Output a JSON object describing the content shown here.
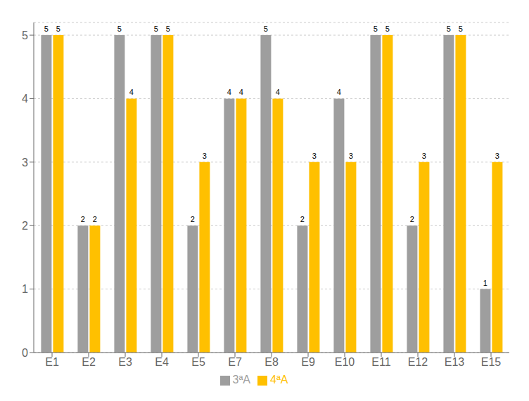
{
  "chart_data": {
    "type": "bar",
    "categories": [
      "E1",
      "E2",
      "E3",
      "E4",
      "E5",
      "E7",
      "E8",
      "E9",
      "E10",
      "E11",
      "E12",
      "E13",
      "E15"
    ],
    "series": [
      {
        "name": "3ªA",
        "color": "#9e9e9e",
        "values": [
          5,
          2,
          5,
          5,
          2,
          4,
          5,
          2,
          4,
          5,
          2,
          5,
          1
        ]
      },
      {
        "name": "4ªA",
        "color": "#FFC000",
        "values": [
          5,
          2,
          4,
          5,
          3,
          4,
          4,
          3,
          3,
          5,
          3,
          5,
          3
        ]
      }
    ],
    "ylim": [
      0,
      5.2
    ],
    "yticks": [
      0,
      1,
      2,
      3,
      4,
      5
    ],
    "grid": true,
    "legend": "bottom",
    "data_labels": true
  }
}
